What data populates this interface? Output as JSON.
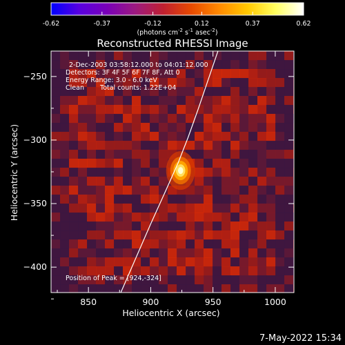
{
  "colorbar": {
    "tick_labels": [
      "-0.62",
      "-0.37",
      "-0.12",
      "0.12",
      "0.37",
      "0.62"
    ],
    "tick_values": [
      -0.62,
      -0.37,
      -0.12,
      0.12,
      0.37,
      0.62
    ],
    "units": "(photons cm",
    "units_exp1": "-2",
    "units_mid": " s",
    "units_exp2": "-1",
    "units_tail": " asec",
    "units_exp3": "-2",
    "units_close": ")",
    "colors": [
      "#0000ff",
      "#5800e0",
      "#7a00b8",
      "#9c1a80",
      "#c02030",
      "#e84a00",
      "#ff8a00",
      "#ffc800",
      "#ffff60",
      "#ffffff"
    ]
  },
  "title": "Reconstructed RHESSI Image",
  "info": {
    "time": "2-Dec-2003 03:58:12.000 to 04:01:12.000",
    "detectors": "Detectors: 3F 4F 5F 6F 7F 8F, Att 0",
    "energy": "Energy Range: 3.0 - 6.0 keV",
    "method": "Clean",
    "counts": "Total counts: 1.22E+04"
  },
  "peak_label": "Position of Peak = [924,-324]",
  "footer_date": "7-May-2022 15:34",
  "chart_data": {
    "type": "heatmap",
    "title": "Reconstructed RHESSI Image",
    "xlabel": "Heliocentric X (arcsec)",
    "ylabel": "Heliocentric Y (arcsec)",
    "xlim": [
      820,
      1015
    ],
    "ylim": [
      -420,
      -230
    ],
    "x_ticks": [
      850,
      900,
      950,
      1000
    ],
    "x_tick_labels": [
      "850",
      "900",
      "950",
      "1000"
    ],
    "y_ticks": [
      -400,
      -350,
      -300,
      -250
    ],
    "y_tick_labels": [
      "-400",
      "-350",
      "-300",
      "-250"
    ],
    "value_range": [
      -0.62,
      0.62
    ],
    "peak": {
      "x": 924,
      "y": -324,
      "value": 0.62
    },
    "limb_curve": [
      {
        "x": 876,
        "y": -420
      },
      {
        "x": 888,
        "y": -393
      },
      {
        "x": 900,
        "y": -366
      },
      {
        "x": 912,
        "y": -340
      },
      {
        "x": 922,
        "y": -318
      },
      {
        "x": 930,
        "y": -298
      },
      {
        "x": 938,
        "y": -276
      },
      {
        "x": 946,
        "y": -253
      },
      {
        "x": 954,
        "y": -230
      }
    ]
  }
}
